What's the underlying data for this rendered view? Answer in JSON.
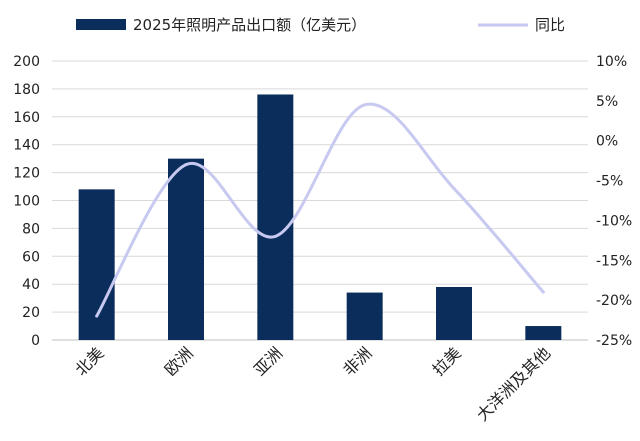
{
  "chart_data": {
    "type": "bar",
    "categories": [
      "北美",
      "欧洲",
      "亚洲",
      "非洲",
      "拉美",
      "大洋洲及其他"
    ],
    "series": [
      {
        "name": "2025年照明产品出口额（亿美元）",
        "type": "bar",
        "axis": "left",
        "values": [
          108,
          130,
          176,
          34,
          38,
          10
        ]
      },
      {
        "name": "同比",
        "type": "line",
        "axis": "right",
        "values": [
          -22,
          -3,
          -12,
          4.5,
          -6,
          -19
        ]
      }
    ],
    "y_left": {
      "min": 0,
      "max": 200,
      "ticks": [
        0,
        20,
        40,
        60,
        80,
        100,
        120,
        140,
        160,
        180,
        200
      ]
    },
    "y_right": {
      "min": -25,
      "max": 10,
      "ticks": [
        10,
        5,
        0,
        -5,
        -10,
        -15,
        -20,
        -25
      ],
      "tick_labels": [
        "10%",
        "5%",
        "0%",
        "-5%",
        "-10%",
        "-15%",
        "-20%",
        "-25%"
      ]
    },
    "grid": true,
    "legend": "top",
    "colors": {
      "bar": "#0b2d5c",
      "line": "#c7c9f0",
      "grid": "#d9d9d9"
    }
  }
}
